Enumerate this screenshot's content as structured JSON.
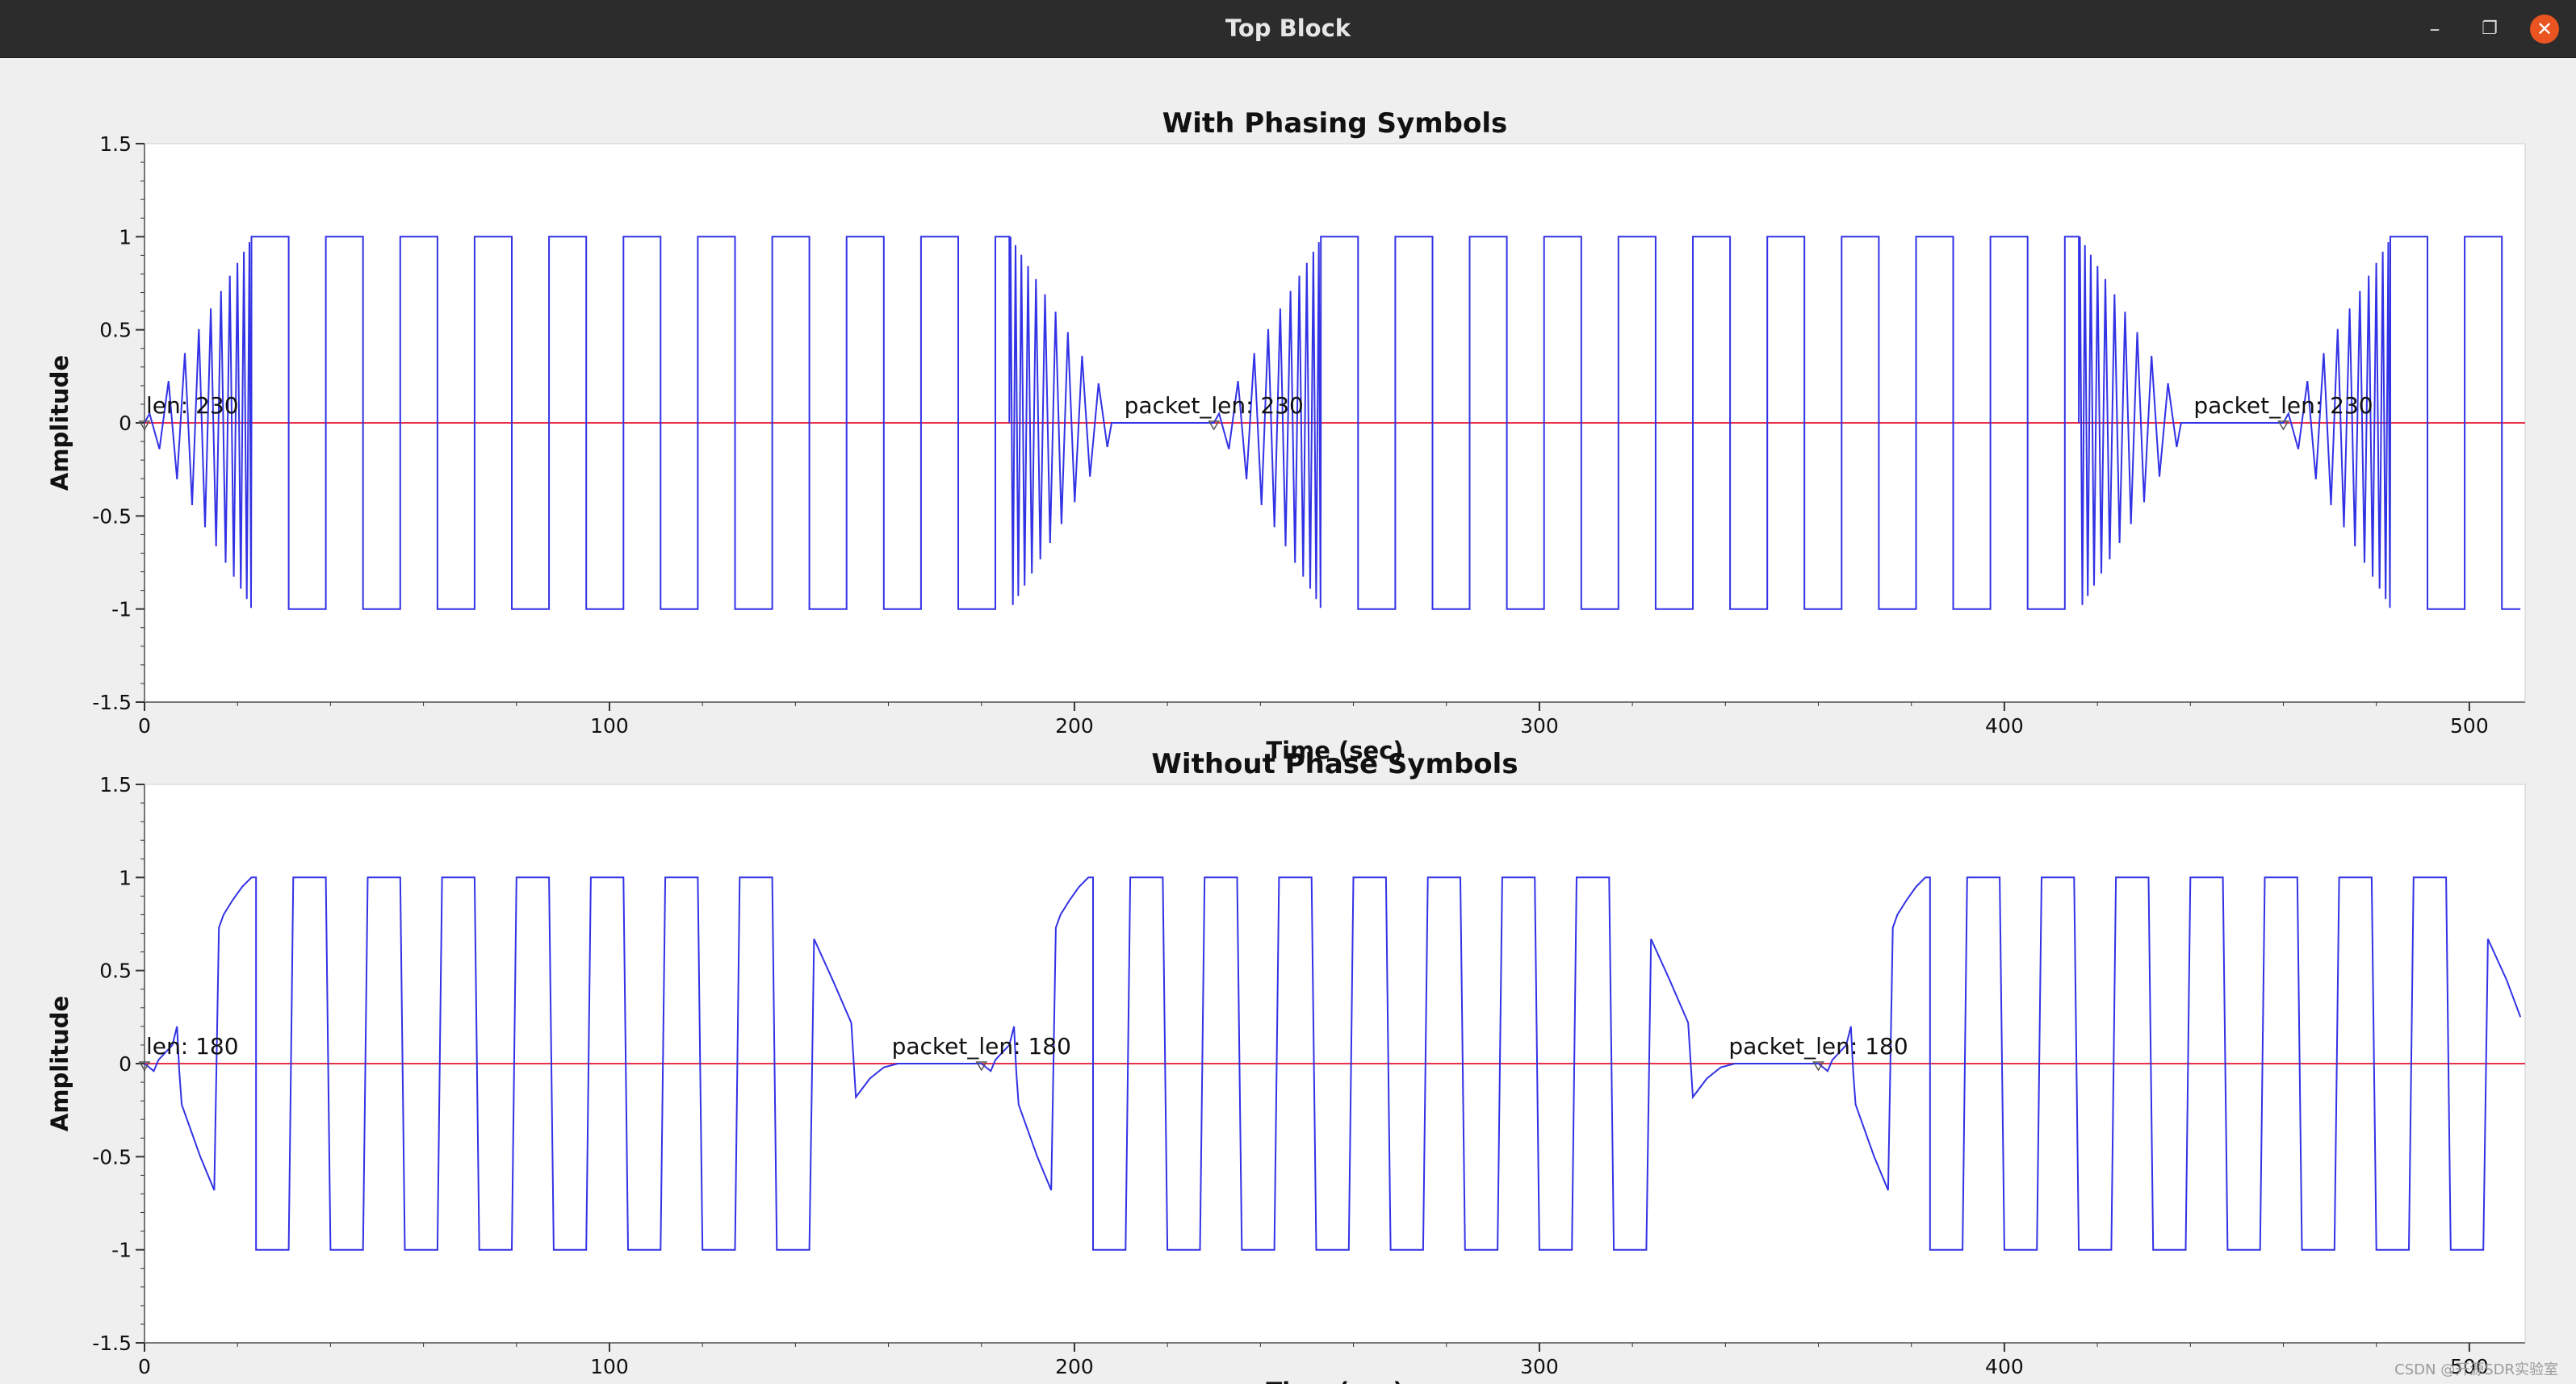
{
  "window": {
    "title": "Top Block",
    "minimize_glyph": "–",
    "restore_glyph": "❐",
    "close_glyph": "✕",
    "icons": [
      "minimize-icon",
      "restore-icon",
      "close-icon"
    ]
  },
  "watermark": "CSDN @开源SDR实验室",
  "colors": {
    "background": "#efefef",
    "plot_bg": "#ffffff",
    "signal": "#3232e6",
    "zero_line": "#e8304a",
    "tag_marker": "#555555"
  },
  "chart_data": [
    {
      "type": "line",
      "title": "With Phasing Symbols",
      "xlabel": "Time (sec)",
      "ylabel": "Amplitude",
      "xlim": [
        0,
        512
      ],
      "ylim": [
        -1.5,
        1.5
      ],
      "x_ticks": [
        0,
        100,
        200,
        300,
        400,
        500
      ],
      "x_tick_labels": [
        "0",
        "100",
        "200",
        "300",
        "400",
        "500"
      ],
      "y_ticks": [
        1.5,
        1,
        0.5,
        0,
        -0.5,
        -1,
        -1.5
      ],
      "y_tick_labels": [
        "1.5",
        "1",
        "0.5",
        "0",
        "-0.5",
        "-1",
        "-1.5"
      ],
      "grid": false,
      "packet_len": 230,
      "segments": [
        {
          "kind": "chirp",
          "x_start": 0,
          "x_end": 23,
          "amp_start": 0.05,
          "amp_end": 1,
          "half_period_start": 2.2,
          "half_period_end": 0.5,
          "direction": "grow"
        },
        {
          "kind": "square",
          "x_start": 23,
          "x_end": 186,
          "levels": [
            1,
            -1
          ],
          "period": 16,
          "start_level": 1
        },
        {
          "kind": "chirp",
          "x_start": 186,
          "x_end": 208,
          "amp_start": 1,
          "amp_end": 0.05,
          "half_period_start": 0.5,
          "half_period_end": 2.2,
          "direction": "decay"
        },
        {
          "kind": "flat",
          "x_start": 208,
          "x_end": 230
        },
        {
          "kind": "chirp",
          "x_start": 230,
          "x_end": 253,
          "amp_start": 0.05,
          "amp_end": 1,
          "half_period_start": 2.2,
          "half_period_end": 0.5,
          "direction": "grow"
        },
        {
          "kind": "square",
          "x_start": 253,
          "x_end": 416,
          "levels": [
            1,
            -1
          ],
          "period": 16,
          "start_level": 1
        },
        {
          "kind": "chirp",
          "x_start": 416,
          "x_end": 438,
          "amp_start": 1,
          "amp_end": 0.05,
          "half_period_start": 0.5,
          "half_period_end": 2.2,
          "direction": "decay"
        },
        {
          "kind": "flat",
          "x_start": 438,
          "x_end": 460
        },
        {
          "kind": "chirp",
          "x_start": 460,
          "x_end": 483,
          "amp_start": 0.05,
          "amp_end": 1,
          "half_period_start": 2.2,
          "half_period_end": 0.5,
          "direction": "grow"
        },
        {
          "kind": "square",
          "x_start": 483,
          "x_end": 511,
          "levels": [
            1,
            -1
          ],
          "period": 16,
          "start_level": 1
        }
      ],
      "tags": [
        {
          "x": 0,
          "label": "len: 230"
        },
        {
          "x": 230,
          "label": "packet_len: 230"
        },
        {
          "x": 460,
          "label": "packet_len: 230"
        }
      ]
    },
    {
      "type": "line",
      "title": "Without Phase Symbols",
      "xlabel": "Time (sec)",
      "ylabel": "Amplitude",
      "xlim": [
        0,
        512
      ],
      "ylim": [
        -1.5,
        1.5
      ],
      "x_ticks": [
        0,
        100,
        200,
        300,
        400,
        500
      ],
      "x_tick_labels": [
        "0",
        "100",
        "200",
        "300",
        "400",
        "500"
      ],
      "y_ticks": [
        1.5,
        1,
        0.5,
        0,
        -0.5,
        -1,
        -1.5
      ],
      "y_tick_labels": [
        "1.5",
        "1",
        "0.5",
        "0",
        "-0.5",
        "-1",
        "-1.5"
      ],
      "grid": false,
      "packet_len": 180,
      "points": [
        [
          0,
          0
        ],
        [
          1,
          -0.02
        ],
        [
          2,
          -0.04
        ],
        [
          3,
          0.02
        ],
        [
          6,
          0.1
        ],
        [
          7,
          0.2
        ],
        [
          7.5,
          -0.05
        ],
        [
          8,
          -0.22
        ],
        [
          12,
          -0.5
        ],
        [
          15,
          -0.68
        ],
        [
          16,
          0.73
        ],
        [
          17,
          0.8
        ],
        [
          19,
          0.88
        ],
        [
          21,
          0.95
        ],
        [
          23,
          1
        ],
        [
          24,
          1
        ],
        [
          24,
          -1
        ],
        [
          31,
          -1
        ],
        [
          32,
          1
        ],
        [
          39,
          1
        ],
        [
          40,
          -1
        ],
        [
          47,
          -1
        ],
        [
          48,
          1
        ],
        [
          55,
          1
        ],
        [
          56,
          -1
        ],
        [
          63,
          -1
        ],
        [
          64,
          1
        ],
        [
          71,
          1
        ],
        [
          72,
          -1
        ],
        [
          79,
          -1
        ],
        [
          80,
          1
        ],
        [
          87,
          1
        ],
        [
          88,
          -1
        ],
        [
          95,
          -1
        ],
        [
          96,
          1
        ],
        [
          103,
          1
        ],
        [
          104,
          -1
        ],
        [
          111,
          -1
        ],
        [
          112,
          1
        ],
        [
          119,
          1
        ],
        [
          120,
          -1
        ],
        [
          127,
          -1
        ],
        [
          128,
          1
        ],
        [
          135,
          1
        ],
        [
          136,
          -1
        ],
        [
          143,
          -1
        ],
        [
          144,
          0.67
        ],
        [
          148,
          0.45
        ],
        [
          152,
          0.22
        ],
        [
          153,
          -0.18
        ],
        [
          156,
          -0.08
        ],
        [
          159,
          -0.02
        ],
        [
          162,
          0
        ],
        [
          180,
          0
        ],
        [
          181,
          -0.02
        ],
        [
          182,
          -0.04
        ],
        [
          183,
          0.02
        ],
        [
          186,
          0.1
        ],
        [
          187,
          0.2
        ],
        [
          187.5,
          -0.05
        ],
        [
          188,
          -0.22
        ],
        [
          192,
          -0.5
        ],
        [
          195,
          -0.68
        ],
        [
          196,
          0.73
        ],
        [
          197,
          0.8
        ],
        [
          199,
          0.88
        ],
        [
          201,
          0.95
        ],
        [
          203,
          1
        ],
        [
          204,
          1
        ],
        [
          204,
          -1
        ],
        [
          211,
          -1
        ],
        [
          212,
          1
        ],
        [
          219,
          1
        ],
        [
          220,
          -1
        ],
        [
          227,
          -1
        ],
        [
          228,
          1
        ],
        [
          235,
          1
        ],
        [
          236,
          -1
        ],
        [
          243,
          -1
        ],
        [
          244,
          1
        ],
        [
          251,
          1
        ],
        [
          252,
          -1
        ],
        [
          259,
          -1
        ],
        [
          260,
          1
        ],
        [
          267,
          1
        ],
        [
          268,
          -1
        ],
        [
          275,
          -1
        ],
        [
          276,
          1
        ],
        [
          283,
          1
        ],
        [
          284,
          -1
        ],
        [
          291,
          -1
        ],
        [
          292,
          1
        ],
        [
          299,
          1
        ],
        [
          300,
          -1
        ],
        [
          307,
          -1
        ],
        [
          308,
          1
        ],
        [
          315,
          1
        ],
        [
          316,
          -1
        ],
        [
          323,
          -1
        ],
        [
          324,
          0.67
        ],
        [
          328,
          0.45
        ],
        [
          332,
          0.22
        ],
        [
          333,
          -0.18
        ],
        [
          336,
          -0.08
        ],
        [
          339,
          -0.02
        ],
        [
          342,
          0
        ],
        [
          360,
          0
        ],
        [
          361,
          -0.02
        ],
        [
          362,
          -0.04
        ],
        [
          363,
          0.02
        ],
        [
          366,
          0.1
        ],
        [
          367,
          0.2
        ],
        [
          367.5,
          -0.05
        ],
        [
          368,
          -0.22
        ],
        [
          372,
          -0.5
        ],
        [
          375,
          -0.68
        ],
        [
          376,
          0.73
        ],
        [
          377,
          0.8
        ],
        [
          379,
          0.88
        ],
        [
          381,
          0.95
        ],
        [
          383,
          1
        ],
        [
          384,
          1
        ],
        [
          384,
          -1
        ],
        [
          391,
          -1
        ],
        [
          392,
          1
        ],
        [
          399,
          1
        ],
        [
          400,
          -1
        ],
        [
          407,
          -1
        ],
        [
          408,
          1
        ],
        [
          415,
          1
        ],
        [
          416,
          -1
        ],
        [
          423,
          -1
        ],
        [
          424,
          1
        ],
        [
          431,
          1
        ],
        [
          432,
          -1
        ],
        [
          439,
          -1
        ],
        [
          440,
          1
        ],
        [
          447,
          1
        ],
        [
          448,
          -1
        ],
        [
          455,
          -1
        ],
        [
          456,
          1
        ],
        [
          463,
          1
        ],
        [
          464,
          -1
        ],
        [
          471,
          -1
        ],
        [
          472,
          1
        ],
        [
          479,
          1
        ],
        [
          480,
          -1
        ],
        [
          487,
          -1
        ],
        [
          488,
          1
        ],
        [
          495,
          1
        ],
        [
          496,
          -1
        ],
        [
          503,
          -1
        ],
        [
          504,
          0.67
        ],
        [
          508,
          0.45
        ],
        [
          511,
          0.25
        ]
      ],
      "tags": [
        {
          "x": 0,
          "label": "len: 180"
        },
        {
          "x": 180,
          "label": "packet_len: 180"
        },
        {
          "x": 360,
          "label": "packet_len: 180"
        }
      ]
    }
  ]
}
